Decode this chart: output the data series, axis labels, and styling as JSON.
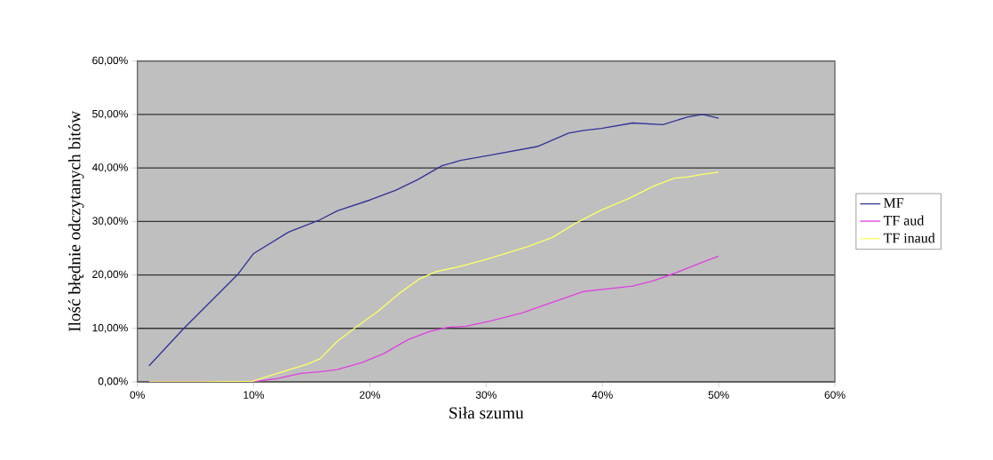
{
  "chart_data": {
    "type": "line",
    "xlabel": "Siła szumu",
    "ylabel": "Ilość błędnie odczytanych bitów",
    "xlim": [
      0,
      60
    ],
    "ylim": [
      0,
      60
    ],
    "xticks": [
      {
        "value": 0,
        "label": "0%"
      },
      {
        "value": 10,
        "label": "10%"
      },
      {
        "value": 20,
        "label": "20%"
      },
      {
        "value": 30,
        "label": "30%"
      },
      {
        "value": 40,
        "label": "40%"
      },
      {
        "value": 50,
        "label": "50%"
      },
      {
        "value": 60,
        "label": "60%"
      }
    ],
    "yticks": [
      {
        "value": 0,
        "label": "0,00%"
      },
      {
        "value": 10,
        "label": "10,00%"
      },
      {
        "value": 20,
        "label": "20,00%"
      },
      {
        "value": 30,
        "label": "30,00%"
      },
      {
        "value": 40,
        "label": "40,00%"
      },
      {
        "value": 50,
        "label": "50,00%"
      },
      {
        "value": 60,
        "label": "60,00%"
      }
    ],
    "grid": "y",
    "legend": "right",
    "series": [
      {
        "name": "MF",
        "color": "#333399",
        "x": [
          1,
          4,
          8.6,
          10,
          13,
          15.7,
          17.2,
          20,
          22.2,
          24.1,
          26.2,
          27.8,
          30.4,
          34.4,
          37.1,
          38.4,
          39.9,
          42.6,
          45.2,
          47.3,
          48.6,
          50
        ],
        "values": [
          3,
          10,
          20,
          24,
          28,
          30.3,
          32,
          34,
          35.8,
          37.8,
          40.4,
          41.4,
          42.4,
          44,
          46.5,
          47,
          47.4,
          48.4,
          48.1,
          49.5,
          50,
          49.3
        ]
      },
      {
        "name": "TF aud",
        "color": "#e040e0",
        "x": [
          1,
          5,
          9.9,
          12,
          14.1,
          15.7,
          17.2,
          19.3,
          21.2,
          23.3,
          25.1,
          26.7,
          28.3,
          30.4,
          33.1,
          35.7,
          38.4,
          40,
          42.6,
          44.4,
          46.2,
          48.3,
          50
        ],
        "values": [
          0,
          0,
          0,
          0.6,
          1.6,
          1.9,
          2.3,
          3.6,
          5.3,
          7.9,
          9.4,
          10.2,
          10.4,
          11.4,
          12.9,
          14.9,
          16.9,
          17.3,
          17.9,
          18.9,
          20.3,
          22.1,
          23.5
        ]
      },
      {
        "name": "TF inaud",
        "color": "#ffff66",
        "x": [
          1,
          5,
          9.9,
          11.2,
          12.8,
          14.6,
          15.7,
          17.2,
          18.8,
          20.7,
          22.5,
          24.3,
          25.7,
          27.8,
          30,
          33.6,
          35.7,
          37.8,
          39.9,
          42.3,
          44.4,
          46.2,
          47.3,
          48.6,
          50
        ],
        "values": [
          0,
          0,
          0.1,
          1,
          2.1,
          3.3,
          4.3,
          7.6,
          10.2,
          13.2,
          16.5,
          19.3,
          20.6,
          21.6,
          22.9,
          25.3,
          27,
          29.8,
          32.1,
          34.3,
          36.6,
          38.1,
          38.3,
          38.8,
          39.2
        ]
      }
    ]
  }
}
